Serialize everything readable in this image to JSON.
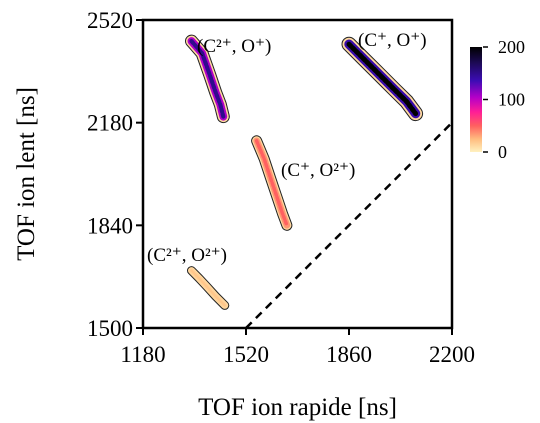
{
  "chart_data": {
    "type": "heatmap",
    "xlabel": "TOF ion rapide [ns]",
    "ylabel": "TOF ion lent [ns]",
    "xlim": [
      1180,
      2200
    ],
    "ylim": [
      1500,
      2520
    ],
    "xticks": [
      1180,
      1520,
      1860,
      2200
    ],
    "yticks": [
      1500,
      1840,
      2180,
      2520
    ],
    "grid": false,
    "colorbar": {
      "ticks": [
        0,
        100,
        200
      ],
      "range": [
        0,
        200
      ],
      "colors": [
        "#fff1c0",
        "#ffbe80",
        "#ff6060",
        "#ff1e96",
        "#b400c8",
        "#3c0cb4",
        "#1e0a5a",
        "#000000"
      ]
    },
    "reference_line": {
      "style": "dashed",
      "from": [
        1520,
        1500
      ],
      "to": [
        2200,
        2180
      ]
    },
    "islands": [
      {
        "label": "(C²⁺, O⁺)",
        "peak_counts": 150,
        "path": [
          [
            1340,
            2450
          ],
          [
            1375,
            2410
          ],
          [
            1400,
            2340
          ],
          [
            1420,
            2280
          ],
          [
            1435,
            2240
          ],
          [
            1445,
            2200
          ]
        ]
      },
      {
        "label": "(C⁺, O⁺)",
        "peak_counts": 200,
        "path": [
          [
            1860,
            2440
          ],
          [
            1910,
            2390
          ],
          [
            1960,
            2340
          ],
          [
            2010,
            2290
          ],
          [
            2050,
            2250
          ],
          [
            2080,
            2210
          ]
        ]
      },
      {
        "label": "(C⁺, O²⁺)",
        "peak_counts": 50,
        "path": [
          [
            1555,
            2120
          ],
          [
            1580,
            2060
          ],
          [
            1600,
            2000
          ],
          [
            1620,
            1940
          ],
          [
            1640,
            1880
          ],
          [
            1655,
            1840
          ]
        ]
      },
      {
        "label": "(C²⁺, O²⁺)",
        "peak_counts": 20,
        "path": [
          [
            1340,
            1690
          ],
          [
            1365,
            1665
          ],
          [
            1390,
            1638
          ],
          [
            1420,
            1605
          ],
          [
            1450,
            1575
          ]
        ]
      }
    ]
  }
}
